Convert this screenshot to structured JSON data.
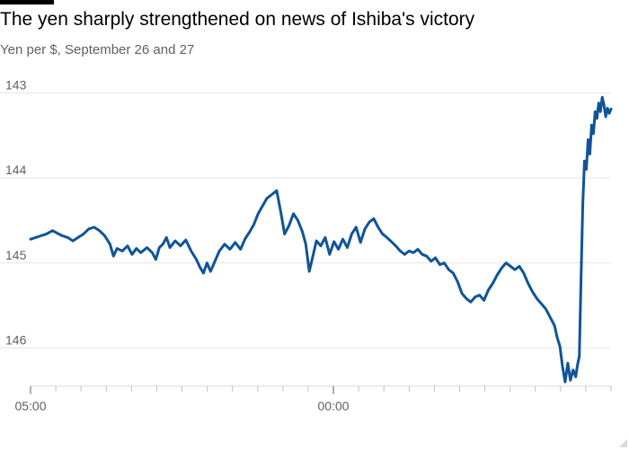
{
  "chart_data": {
    "type": "line",
    "title": "The yen sharply strengthened on news of Ishiba's victory",
    "subtitle": "Yen per $, September 26 and 27",
    "y_axis": {
      "inverted": true,
      "ylim": [
        146.45,
        142.9
      ],
      "ticks": [
        143,
        144,
        145,
        146
      ]
    },
    "x_axis": {
      "tick_labels": [
        "05:00",
        "00:00"
      ],
      "minor_ticks": 23
    },
    "grid": true,
    "series": [
      {
        "color": "#0f5499",
        "points": [
          [
            0.0,
            144.72
          ],
          [
            0.6,
            144.7
          ],
          [
            1.2,
            144.68
          ],
          [
            1.8,
            144.66
          ],
          [
            2.5,
            144.62
          ],
          [
            3.0,
            144.65
          ],
          [
            3.6,
            144.68
          ],
          [
            4.2,
            144.7
          ],
          [
            4.8,
            144.74
          ],
          [
            5.4,
            144.7
          ],
          [
            6.0,
            144.66
          ],
          [
            6.6,
            144.6
          ],
          [
            7.2,
            144.58
          ],
          [
            7.8,
            144.62
          ],
          [
            8.4,
            144.68
          ],
          [
            9.0,
            144.78
          ],
          [
            9.4,
            144.92
          ],
          [
            9.8,
            144.83
          ],
          [
            10.4,
            144.86
          ],
          [
            11.0,
            144.8
          ],
          [
            11.5,
            144.9
          ],
          [
            12.0,
            144.83
          ],
          [
            12.5,
            144.88
          ],
          [
            13.2,
            144.82
          ],
          [
            13.8,
            144.88
          ],
          [
            14.2,
            144.96
          ],
          [
            14.6,
            144.82
          ],
          [
            15.0,
            144.78
          ],
          [
            15.4,
            144.7
          ],
          [
            15.8,
            144.82
          ],
          [
            16.4,
            144.74
          ],
          [
            17.0,
            144.8
          ],
          [
            17.6,
            144.73
          ],
          [
            18.2,
            144.86
          ],
          [
            18.8,
            144.96
          ],
          [
            19.2,
            145.05
          ],
          [
            19.6,
            145.12
          ],
          [
            20.0,
            145.0
          ],
          [
            20.4,
            145.1
          ],
          [
            20.9,
            144.98
          ],
          [
            21.4,
            144.86
          ],
          [
            22.0,
            144.78
          ],
          [
            22.6,
            144.84
          ],
          [
            23.2,
            144.76
          ],
          [
            23.8,
            144.84
          ],
          [
            24.3,
            144.72
          ],
          [
            24.8,
            144.64
          ],
          [
            25.3,
            144.55
          ],
          [
            25.8,
            144.42
          ],
          [
            26.3,
            144.33
          ],
          [
            26.8,
            144.24
          ],
          [
            27.3,
            144.2
          ],
          [
            27.9,
            144.15
          ],
          [
            28.4,
            144.42
          ],
          [
            28.8,
            144.66
          ],
          [
            29.3,
            144.56
          ],
          [
            29.8,
            144.42
          ],
          [
            30.3,
            144.5
          ],
          [
            30.8,
            144.63
          ],
          [
            31.2,
            144.78
          ],
          [
            31.6,
            145.1
          ],
          [
            32.0,
            144.92
          ],
          [
            32.4,
            144.74
          ],
          [
            32.9,
            144.8
          ],
          [
            33.4,
            144.7
          ],
          [
            33.9,
            144.9
          ],
          [
            34.4,
            144.75
          ],
          [
            34.9,
            144.84
          ],
          [
            35.4,
            144.72
          ],
          [
            35.9,
            144.82
          ],
          [
            36.4,
            144.66
          ],
          [
            36.9,
            144.58
          ],
          [
            37.4,
            144.76
          ],
          [
            37.9,
            144.6
          ],
          [
            38.4,
            144.52
          ],
          [
            38.9,
            144.48
          ],
          [
            39.4,
            144.58
          ],
          [
            39.9,
            144.66
          ],
          [
            40.4,
            144.7
          ],
          [
            40.9,
            144.75
          ],
          [
            41.4,
            144.8
          ],
          [
            41.9,
            144.86
          ],
          [
            42.4,
            144.9
          ],
          [
            42.9,
            144.86
          ],
          [
            43.4,
            144.88
          ],
          [
            43.9,
            144.84
          ],
          [
            44.4,
            144.9
          ],
          [
            44.9,
            144.92
          ],
          [
            45.4,
            144.98
          ],
          [
            45.9,
            144.94
          ],
          [
            46.4,
            145.02
          ],
          [
            46.9,
            145.0
          ],
          [
            47.4,
            145.08
          ],
          [
            47.9,
            145.12
          ],
          [
            48.4,
            145.22
          ],
          [
            48.9,
            145.36
          ],
          [
            49.4,
            145.42
          ],
          [
            49.9,
            145.46
          ],
          [
            50.4,
            145.4
          ],
          [
            50.9,
            145.38
          ],
          [
            51.4,
            145.44
          ],
          [
            51.9,
            145.32
          ],
          [
            52.4,
            145.24
          ],
          [
            52.9,
            145.14
          ],
          [
            53.4,
            145.06
          ],
          [
            53.9,
            145.0
          ],
          [
            54.4,
            145.04
          ],
          [
            54.9,
            145.08
          ],
          [
            55.4,
            145.04
          ],
          [
            55.9,
            145.12
          ],
          [
            56.4,
            145.24
          ],
          [
            56.9,
            145.34
          ],
          [
            57.4,
            145.42
          ],
          [
            57.9,
            145.48
          ],
          [
            58.4,
            145.54
          ],
          [
            58.9,
            145.64
          ],
          [
            59.4,
            145.74
          ],
          [
            59.7,
            145.88
          ],
          [
            60.0,
            145.98
          ],
          [
            60.3,
            146.22
          ],
          [
            60.6,
            146.4
          ],
          [
            60.9,
            146.18
          ],
          [
            61.2,
            146.38
          ],
          [
            61.5,
            146.26
          ],
          [
            61.8,
            146.34
          ],
          [
            62.0,
            146.2
          ],
          [
            62.2,
            146.1
          ],
          [
            62.4,
            145.2
          ],
          [
            62.6,
            144.3
          ],
          [
            62.8,
            143.8
          ],
          [
            63.0,
            143.9
          ],
          [
            63.2,
            143.55
          ],
          [
            63.4,
            143.72
          ],
          [
            63.6,
            143.38
          ],
          [
            63.8,
            143.48
          ],
          [
            64.0,
            143.22
          ],
          [
            64.2,
            143.3
          ],
          [
            64.4,
            143.12
          ],
          [
            64.6,
            143.22
          ],
          [
            64.8,
            143.05
          ],
          [
            65.0,
            143.14
          ],
          [
            65.2,
            143.28
          ],
          [
            65.4,
            143.18
          ],
          [
            65.6,
            143.24
          ],
          [
            65.8,
            143.19
          ]
        ]
      }
    ]
  }
}
